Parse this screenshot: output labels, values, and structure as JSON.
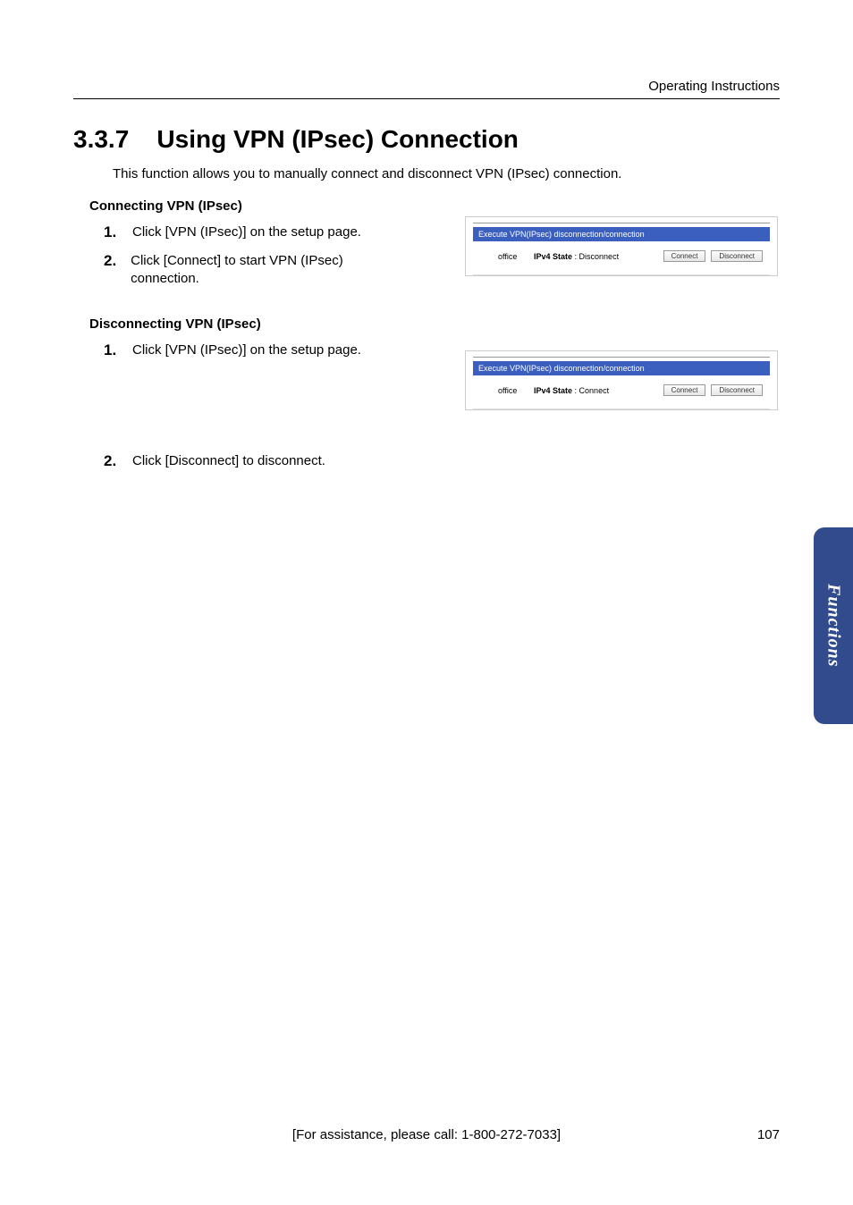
{
  "header": {
    "right": "Operating Instructions"
  },
  "section": {
    "number": "3.3.7",
    "title": "Using VPN (IPsec) Connection",
    "intro": "This function allows you to manually connect and disconnect VPN (IPsec) connection."
  },
  "connecting": {
    "heading": "Connecting VPN (IPsec)",
    "steps": [
      "Click [VPN (IPsec)] on the setup page.",
      "Click [Connect] to start VPN (IPsec) connection."
    ]
  },
  "disconnecting": {
    "heading": "Disconnecting VPN (IPsec)",
    "steps": [
      "Click [VPN (IPsec)] on the setup page.",
      "Click [Disconnect] to disconnect."
    ]
  },
  "panel": {
    "header": "Execute VPN(IPsec) disconnection/connection",
    "name": "office",
    "state_label": "IPv4 State",
    "state_disconnect": "Disconnect",
    "state_connect": "Connect",
    "btn_connect": "Connect",
    "btn_disconnect": "Disconnect"
  },
  "sidetab": "Functions",
  "footer": {
    "assist": "[For assistance, please call: 1-800-272-7033]",
    "page": "107"
  }
}
